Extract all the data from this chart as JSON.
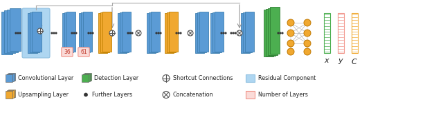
{
  "bg_color": "#ffffff",
  "fig_width": 6.4,
  "fig_height": 1.64,
  "dpi": 100,
  "blue": "#5b9bd5",
  "lt_blue": "#aed6f1",
  "orange": "#f0a830",
  "green": "#4caf50",
  "pink": "#fadbd8",
  "pink_border": "#f1948a",
  "node_color": "#f0a830",
  "numbers": [
    "36",
    "61"
  ],
  "output_labels": [
    "x",
    "y",
    "C"
  ]
}
